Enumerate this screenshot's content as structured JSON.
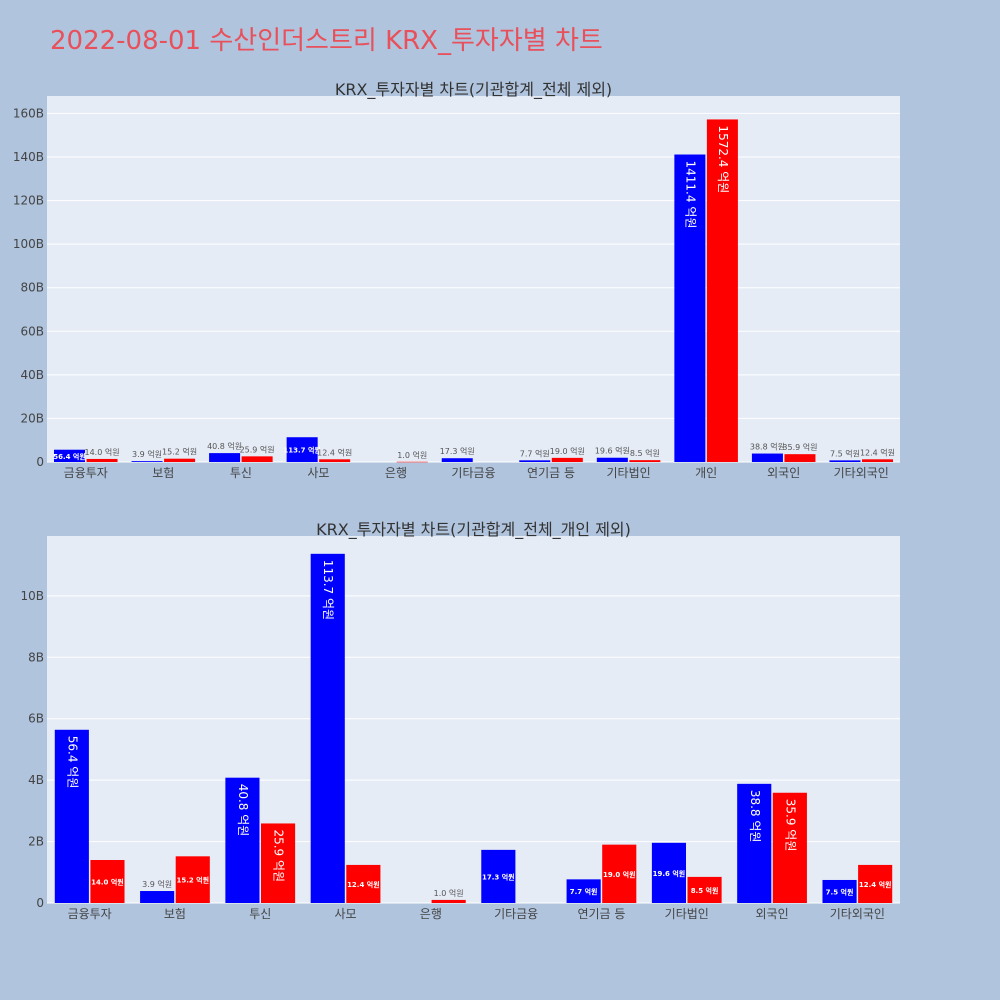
{
  "title": "2022-08-01 수산인더스트리 KRX_투자자별 차트",
  "chart_data": [
    {
      "type": "bar",
      "title": "KRX_투자자별 차트(기관합계_전체 제외)",
      "categories": [
        "금융투자",
        "보험",
        "투신",
        "사모",
        "은행",
        "기타금융",
        "연기금 등",
        "기타법인",
        "개인",
        "외국인",
        "기타외국인"
      ],
      "series": [
        {
          "color": "#0000ff",
          "values": [
            5.64,
            0.39,
            4.08,
            11.37,
            0,
            1.73,
            0.77,
            1.96,
            141.14,
            3.88,
            0.75
          ],
          "labels": [
            "56.4 억원",
            "3.9 억원",
            "40.8 억원",
            "113.7 억원",
            "",
            "17.3 억원",
            "7.7 억원",
            "19.6 억원",
            "1411.4 억원",
            "38.8 억원",
            "7.5 억원"
          ]
        },
        {
          "color": "#ff0000",
          "values": [
            1.4,
            1.52,
            2.59,
            1.24,
            0.1,
            0,
            1.9,
            0.85,
            157.24,
            3.59,
            1.24
          ],
          "labels": [
            "14.0 억원",
            "15.2 억원",
            "25.9 억원",
            "12.4 억원",
            "1.0 억원",
            "",
            "19.0 억원",
            "8.5 억원",
            "1572.4 억원",
            "35.9 억원",
            "12.4 억원"
          ]
        }
      ],
      "ylim": [
        0,
        168
      ],
      "yticks": [
        0,
        20,
        40,
        60,
        80,
        100,
        120,
        140,
        160
      ],
      "ytick_labels": [
        "0",
        "20B",
        "40B",
        "60B",
        "80B",
        "100B",
        "120B",
        "140B",
        "160B"
      ],
      "grid": true
    },
    {
      "type": "bar",
      "title": "KRX_투자자별 차트(기관합계_전체_개인 제외)",
      "categories": [
        "금융투자",
        "보험",
        "투신",
        "사모",
        "은행",
        "기타금융",
        "연기금 등",
        "기타법인",
        "외국인",
        "기타외국인"
      ],
      "series": [
        {
          "color": "#0000ff",
          "values": [
            5.64,
            0.39,
            4.08,
            11.37,
            0,
            1.73,
            0.77,
            1.96,
            3.88,
            0.75
          ],
          "labels": [
            "56.4 억원",
            "3.9 억원",
            "40.8 억원",
            "113.7 억원",
            "",
            "17.3 억원",
            "7.7 억원",
            "19.6 억원",
            "38.8 억원",
            "7.5 억원"
          ]
        },
        {
          "color": "#ff0000",
          "values": [
            1.4,
            1.52,
            2.59,
            1.24,
            0.1,
            0,
            1.9,
            0.85,
            3.59,
            1.24
          ],
          "labels": [
            "14.0 억원",
            "15.2 억원",
            "25.9 억원",
            "12.4 억원",
            "1.0 억원",
            "",
            "19.0 억원",
            "8.5 억원",
            "35.9 억원",
            "12.4 억원"
          ]
        }
      ],
      "ylim": [
        0,
        11.95
      ],
      "yticks": [
        0,
        2,
        4,
        6,
        8,
        10
      ],
      "ytick_labels": [
        "0",
        "2B",
        "4B",
        "6B",
        "8B",
        "10B"
      ],
      "grid": true
    }
  ]
}
